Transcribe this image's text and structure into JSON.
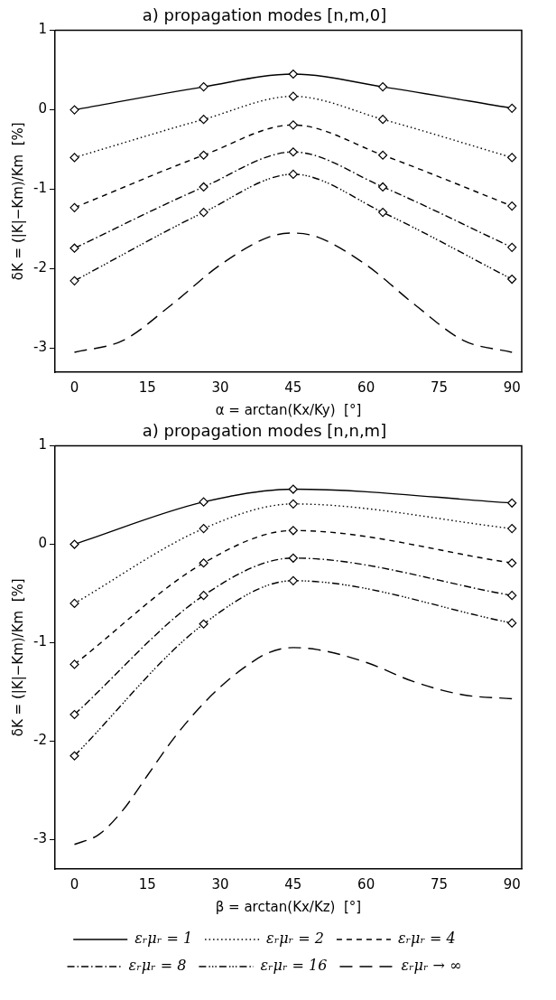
{
  "chart_data": [
    {
      "type": "line",
      "title": "a) propagation modes [n,m,0]",
      "xlabel": "α = arctan(Kx/Ky)  [°]",
      "ylabel": "δK = (|K|−Km)/Km  [%]",
      "xlim": [
        -4,
        92
      ],
      "xticks": [
        0,
        15,
        30,
        45,
        60,
        75,
        90
      ],
      "ylim": [
        -3.3,
        1
      ],
      "yticks": [
        -3,
        -2,
        -1,
        0,
        1
      ],
      "grid": false,
      "legend": false,
      "series": [
        {
          "color": "#000000",
          "line_style": "solid",
          "marker": "diamond",
          "x": [
            0,
            26.57,
            45,
            63.43,
            90
          ],
          "values": [
            0,
            0.29,
            0.45,
            0.29,
            0.02
          ]
        },
        {
          "color": "#000000",
          "line_style": "dotted",
          "marker": "diamond",
          "x": [
            0,
            26.57,
            45,
            63.43,
            90
          ],
          "values": [
            -0.6,
            -0.12,
            0.17,
            -0.12,
            -0.6
          ]
        },
        {
          "color": "#000000",
          "line_style": "dashed",
          "marker": "diamond",
          "x": [
            0,
            26.57,
            45,
            63.43,
            90
          ],
          "values": [
            -1.23,
            -0.57,
            -0.19,
            -0.57,
            -1.21
          ]
        },
        {
          "color": "#000000",
          "line_style": "dashdot",
          "marker": "diamond",
          "x": [
            0,
            26.57,
            45,
            63.43,
            90
          ],
          "values": [
            -1.74,
            -0.97,
            -0.53,
            -0.97,
            -1.73
          ]
        },
        {
          "color": "#000000",
          "line_style": "dashdotdotdot",
          "marker": "diamond",
          "x": [
            0,
            26.57,
            45,
            63.43,
            90
          ],
          "values": [
            -2.15,
            -1.29,
            -0.81,
            -1.29,
            -2.13
          ]
        },
        {
          "color": "#000000",
          "line_style": "longdash",
          "marker": "none",
          "x": [
            0,
            10,
            20,
            30,
            40,
            45,
            50,
            60,
            70,
            80,
            90
          ],
          "values": [
            -3.05,
            -2.9,
            -2.45,
            -1.95,
            -1.6,
            -1.55,
            -1.6,
            -1.95,
            -2.45,
            -2.9,
            -3.05
          ]
        }
      ]
    },
    {
      "type": "line",
      "title": "a) propagation modes [n,n,m]",
      "xlabel": "β = arctan(Kx/Kz)  [°]",
      "ylabel": "δK = (|K|−Km)/Km  [%]",
      "xlim": [
        -4,
        92
      ],
      "xticks": [
        0,
        15,
        30,
        45,
        60,
        75,
        90
      ],
      "ylim": [
        -3.3,
        1
      ],
      "yticks": [
        -3,
        -2,
        -1,
        0,
        1
      ],
      "grid": false,
      "legend": "bottom",
      "series": [
        {
          "name": "εᵣμᵣ = 1",
          "color": "#000000",
          "line_style": "solid",
          "marker": "diamond",
          "x": [
            0,
            26.57,
            45,
            90
          ],
          "values": [
            0,
            0.43,
            0.56,
            0.42
          ]
        },
        {
          "name": "εᵣμᵣ = 2",
          "color": "#000000",
          "line_style": "dotted",
          "marker": "diamond",
          "x": [
            0,
            26.57,
            45,
            90
          ],
          "values": [
            -0.6,
            0.16,
            0.41,
            0.16
          ]
        },
        {
          "name": "εᵣμᵣ = 4",
          "color": "#000000",
          "line_style": "dashed",
          "marker": "diamond",
          "x": [
            0,
            26.57,
            45,
            90
          ],
          "values": [
            -1.22,
            -0.19,
            0.14,
            -0.19
          ]
        },
        {
          "name": "εᵣμᵣ = 8",
          "color": "#000000",
          "line_style": "dashdot",
          "marker": "diamond",
          "x": [
            0,
            26.57,
            45,
            90
          ],
          "values": [
            -1.73,
            -0.52,
            -0.14,
            -0.52
          ]
        },
        {
          "name": "εᵣμᵣ = 16",
          "color": "#000000",
          "line_style": "dashdotdotdot",
          "marker": "diamond",
          "x": [
            0,
            26.57,
            45,
            90
          ],
          "values": [
            -2.15,
            -0.81,
            -0.37,
            -0.8
          ]
        },
        {
          "name": "εᵣμᵣ → ∞",
          "color": "#000000",
          "line_style": "longdash",
          "marker": "none",
          "x": [
            0,
            5,
            10,
            15,
            20,
            25,
            30,
            35,
            40,
            45,
            50,
            60,
            70,
            80,
            90
          ],
          "values": [
            -3.05,
            -2.95,
            -2.7,
            -2.35,
            -2,
            -1.7,
            -1.45,
            -1.25,
            -1.1,
            -1.05,
            -1.07,
            -1.2,
            -1.4,
            -1.53,
            -1.57
          ]
        }
      ]
    }
  ]
}
